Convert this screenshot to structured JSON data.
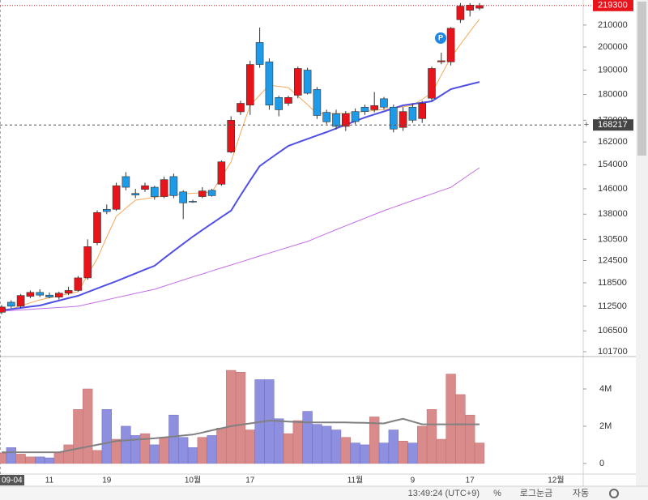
{
  "chart_data": {
    "type": "candlestick",
    "log_scale": true,
    "grid": false,
    "ylim": [
      100600,
      222000
    ],
    "yticks": [
      101700,
      106500,
      112500,
      118500,
      124500,
      130500,
      138000,
      146000,
      154000,
      162000,
      170000,
      180000,
      190000,
      200000,
      210000
    ],
    "up_color": "#e8141c",
    "down_color": "#1e9be8",
    "categories": [
      "09-04",
      null,
      null,
      null,
      null,
      "11",
      null,
      null,
      null,
      null,
      null,
      "19",
      null,
      null,
      null,
      null,
      null,
      null,
      null,
      null,
      "10월",
      null,
      null,
      null,
      null,
      null,
      "17",
      null,
      null,
      null,
      null,
      null,
      null,
      null,
      null,
      null,
      null,
      "11월",
      null,
      null,
      null,
      null,
      null,
      "9",
      null,
      null,
      null,
      null,
      null,
      "17",
      null,
      null,
      null,
      null,
      null,
      null,
      null,
      null,
      "12월",
      null
    ],
    "open": [
      111000,
      113500,
      112500,
      115000,
      116000,
      115300,
      114800,
      115800,
      116500,
      119800,
      129500,
      139500,
      139500,
      150000,
      144500,
      145800,
      146500,
      143500,
      150000,
      145000,
      142000,
      143500,
      145500,
      147500,
      158400,
      173200,
      175800,
      202000,
      193500,
      178800,
      176500,
      179700,
      190000,
      182000,
      173000,
      172500,
      167700,
      173300,
      175000,
      174000,
      178300,
      175000,
      167300,
      175000,
      170600,
      178500,
      193500,
      193500,
      212500,
      217000,
      218000,
      null,
      null,
      null,
      null,
      null,
      null,
      null,
      null,
      null
    ],
    "high": [
      112800,
      114000,
      115600,
      116500,
      116800,
      116000,
      116200,
      117500,
      120300,
      130500,
      139200,
      141000,
      148000,
      151500,
      146000,
      148000,
      147000,
      150000,
      151000,
      145500,
      142500,
      146500,
      146000,
      155500,
      171500,
      177500,
      194000,
      208800,
      195000,
      179500,
      179500,
      191500,
      191000,
      183000,
      174000,
      174000,
      173500,
      174500,
      176000,
      181000,
      179000,
      176000,
      175000,
      176500,
      177500,
      191500,
      197500,
      209000,
      220500,
      220500,
      220500,
      null,
      null,
      null,
      null,
      null,
      null,
      null,
      null,
      null
    ],
    "low": [
      110500,
      112000,
      112000,
      114500,
      114800,
      114500,
      114200,
      115300,
      116200,
      119300,
      128800,
      138000,
      139000,
      145500,
      143000,
      145000,
      142500,
      143000,
      143000,
      136500,
      141500,
      143000,
      143500,
      147000,
      158000,
      172000,
      172000,
      191000,
      174000,
      171500,
      175500,
      178500,
      180000,
      170500,
      168500,
      166500,
      166000,
      168500,
      172000,
      173000,
      174000,
      165500,
      166000,
      169000,
      169000,
      177500,
      192500,
      192000,
      211000,
      214000,
      217000,
      null,
      null,
      null,
      null,
      null,
      null,
      null,
      null,
      null
    ],
    "close": [
      112300,
      112500,
      115200,
      116000,
      115300,
      114800,
      115800,
      116500,
      119800,
      128400,
      138500,
      138800,
      147000,
      146500,
      144000,
      147000,
      143500,
      149000,
      143800,
      141500,
      141800,
      145300,
      143800,
      155000,
      170000,
      176500,
      192400,
      192400,
      175800,
      174000,
      178800,
      190700,
      180500,
      171800,
      169400,
      167700,
      172500,
      169500,
      173300,
      175600,
      175000,
      166700,
      173300,
      170000,
      176500,
      190700,
      194000,
      208500,
      219000,
      219500,
      219300,
      null,
      null,
      null,
      null,
      null,
      null,
      null,
      null,
      null
    ],
    "moving_averages": [
      {
        "color": "#f5a85a",
        "width": 1,
        "values": [
          111070,
          111830,
          112590,
          113340,
          114100,
          114620,
          115140,
          115660,
          116180,
          120590,
          125000,
          131170,
          137330,
          139840,
          142350,
          142810,
          143260,
          143720,
          144170,
          144370,
          144560,
          144760,
          144950,
          149940,
          154930,
          165320,
          175700,
          179740,
          183770,
          183280,
          182780,
          179380,
          175980,
          172570,
          172570,
          172570,
          172570,
          172960,
          173350,
          173730,
          174120,
          174650,
          175170,
          175700,
          178100,
          180490,
          187940,
          195390,
          201190,
          207000,
          212800,
          null,
          null,
          null,
          null,
          null,
          null,
          null,
          null,
          null
        ]
      },
      {
        "color": "#5050e6",
        "width": 2,
        "values": [
          111470,
          111770,
          112070,
          112380,
          112680,
          113300,
          113910,
          114530,
          115140,
          116090,
          117030,
          117980,
          118920,
          119960,
          120990,
          122030,
          123060,
          125120,
          127180,
          129230,
          131290,
          133240,
          135180,
          137130,
          139070,
          143890,
          148720,
          153540,
          155890,
          158250,
          160600,
          161850,
          163090,
          164340,
          165580,
          166940,
          168300,
          169660,
          171020,
          172190,
          173360,
          174530,
          175700,
          176230,
          176760,
          177290,
          179710,
          182130,
          183120,
          184110,
          185100,
          null,
          null,
          null,
          null,
          null,
          null,
          null,
          null,
          null
        ]
      },
      {
        "color": "#c46ee6",
        "width": 1,
        "values": [
          111270,
          111420,
          111570,
          111720,
          111880,
          112030,
          112180,
          112330,
          112480,
          113020,
          113560,
          114100,
          114650,
          115190,
          115730,
          116270,
          116810,
          117620,
          118430,
          119240,
          120050,
          120850,
          121660,
          122470,
          123280,
          124110,
          124930,
          125760,
          126580,
          127410,
          128230,
          129060,
          129880,
          131030,
          132180,
          133330,
          134470,
          135620,
          136770,
          137920,
          139070,
          140120,
          141180,
          142230,
          143290,
          144340,
          145400,
          146450,
          148630,
          150810,
          152990,
          null,
          null,
          null,
          null,
          null,
          null,
          null,
          null,
          null
        ]
      }
    ],
    "last_price": 219300,
    "crosshair_price": 168217,
    "event_marker": "P",
    "volume": {
      "ylim": [
        -570000,
        5740000
      ],
      "yticks": [
        0,
        {
          "value": 2000000,
          "label": "2M"
        },
        {
          "value": 4000000,
          "label": "4M"
        }
      ],
      "up_color": "#d98b8b",
      "down_color": "#8f8fe0",
      "values": [
        550000,
        850000,
        500000,
        350000,
        350000,
        300000,
        600000,
        1000000,
        2900000,
        4000000,
        700000,
        2900000,
        1300000,
        2000000,
        1500000,
        1600000,
        1000000,
        1400000,
        2600000,
        1400000,
        850000,
        1400000,
        1500000,
        1900000,
        5000000,
        4900000,
        1800000,
        4500000,
        4500000,
        2400000,
        1600000,
        2300000,
        2800000,
        2100000,
        2000000,
        1800000,
        1400000,
        1100000,
        1000000,
        2500000,
        1100000,
        1800000,
        1200000,
        1100000,
        2000000,
        2900000,
        1300000,
        4800000,
        3700000,
        2600000,
        1100000,
        null,
        null,
        null,
        null,
        null,
        null,
        null,
        null,
        null
      ],
      "ma_color": "#808080",
      "ma": [
        600000,
        600000,
        600000,
        600000,
        600000,
        600000,
        600000,
        700000,
        800000,
        900000,
        1000000,
        1100000,
        1200000,
        1240000,
        1280000,
        1310000,
        1350000,
        1400000,
        1450000,
        1500000,
        1550000,
        1660000,
        1780000,
        1890000,
        2000000,
        2080000,
        2150000,
        2230000,
        2300000,
        2280000,
        2250000,
        2230000,
        2200000,
        2200000,
        2200000,
        2200000,
        2200000,
        2190000,
        2180000,
        2160000,
        2150000,
        2280000,
        2400000,
        2250000,
        2100000,
        2100000,
        2100000,
        2100000,
        2100000,
        2100000,
        2100000,
        null,
        null,
        null,
        null,
        null,
        null,
        null,
        null,
        null
      ]
    },
    "toolbar": {
      "time": "13:49:24 (UTC+9)",
      "percent": "%",
      "log": "로그눈금",
      "auto": "자동"
    }
  }
}
